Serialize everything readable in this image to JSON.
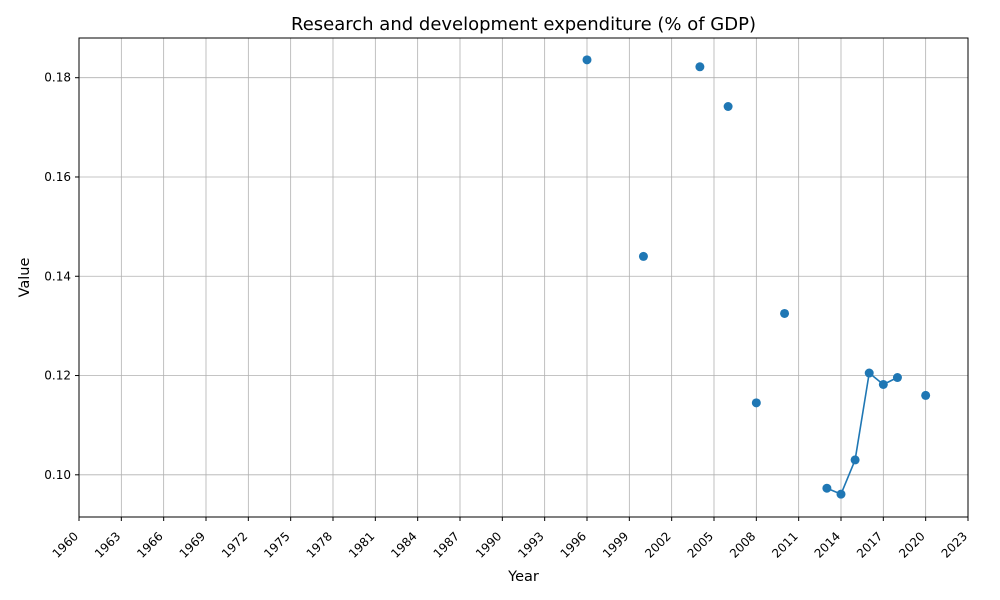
{
  "chart_data": {
    "type": "line",
    "title": "Research and development expenditure (% of GDP)",
    "xlabel": "Year",
    "ylabel": "Value",
    "xlim": [
      1960,
      2023
    ],
    "ylim": [
      0.0915,
      0.188
    ],
    "grid": true,
    "x_ticks": [
      1960,
      1963,
      1966,
      1969,
      1972,
      1975,
      1978,
      1981,
      1984,
      1987,
      1990,
      1993,
      1996,
      1999,
      2002,
      2005,
      2008,
      2011,
      2014,
      2017,
      2020,
      2023
    ],
    "y_ticks": [
      0.1,
      0.12,
      0.14,
      0.16,
      0.18
    ],
    "series": [
      {
        "color": "#1f77b4",
        "points": [
          {
            "x": 1996,
            "y": 0.1836
          },
          {
            "x": 2000,
            "y": 0.144
          },
          {
            "x": 2004,
            "y": 0.1822
          },
          {
            "x": 2006,
            "y": 0.1742
          },
          {
            "x": 2008,
            "y": 0.1145
          },
          {
            "x": 2010,
            "y": 0.1325
          },
          {
            "x": 2013,
            "y": 0.0973
          },
          {
            "x": 2014,
            "y": 0.0961
          },
          {
            "x": 2015,
            "y": 0.103
          },
          {
            "x": 2016,
            "y": 0.1205
          },
          {
            "x": 2017,
            "y": 0.1182
          },
          {
            "x": 2018,
            "y": 0.1196
          },
          {
            "x": 2020,
            "y": 0.116
          }
        ]
      }
    ]
  }
}
